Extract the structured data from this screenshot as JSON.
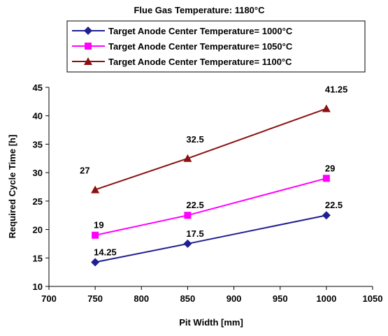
{
  "chart_data": {
    "type": "line",
    "title": "Flue Gas Temperature: 1180°C",
    "xlabel": "Pit Width [mm]",
    "ylabel": "Required Cycle Time [h]",
    "xlim": [
      700,
      1050
    ],
    "ylim": [
      10,
      45
    ],
    "x_ticks": [
      "700",
      "750",
      "800",
      "850",
      "900",
      "950",
      "1000",
      "1050"
    ],
    "y_ticks": [
      "10",
      "15",
      "20",
      "25",
      "30",
      "35",
      "40",
      "45"
    ],
    "x": [
      750,
      850,
      1000
    ],
    "legend_position": "top",
    "grid": false,
    "series": [
      {
        "name": "Target Anode Center Temperature= 1000°C",
        "values": [
          14.25,
          17.5,
          22.5
        ],
        "labels": [
          "14.25",
          "17.5",
          "22.5"
        ],
        "color": "#1f1f8f",
        "marker": "diamond"
      },
      {
        "name": "Target Anode Center Temperature= 1050°C",
        "values": [
          19,
          22.5,
          29
        ],
        "labels": [
          "19",
          "22.5",
          "29"
        ],
        "color": "#ff00ff",
        "marker": "square"
      },
      {
        "name": "Target Anode Center Temperature= 1100°C",
        "values": [
          27,
          32.5,
          41.25
        ],
        "labels": [
          "27",
          "32.5",
          "41.25"
        ],
        "color": "#8b1010",
        "marker": "triangle"
      }
    ]
  }
}
